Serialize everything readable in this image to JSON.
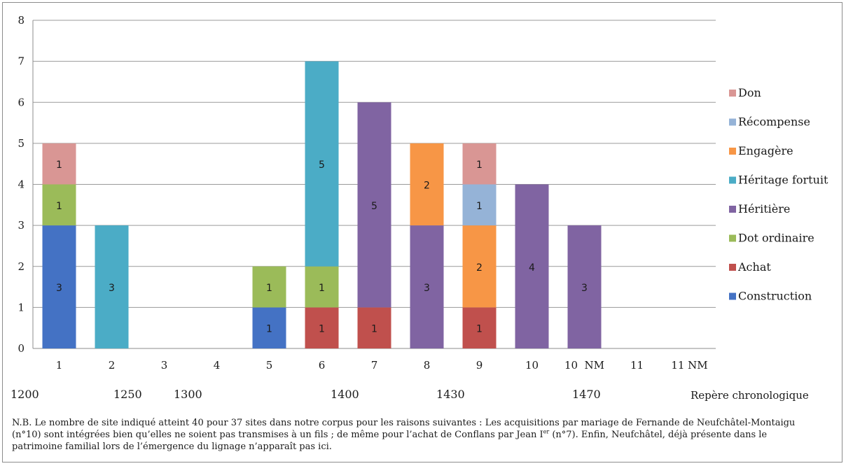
{
  "chart_data": {
    "type": "bar",
    "stacked": true,
    "categories": [
      "1",
      "2",
      "3",
      "4",
      "5",
      "6",
      "7",
      "8",
      "9",
      "10",
      "10  NM",
      "11",
      "11 NM"
    ],
    "ylim": [
      0,
      8
    ],
    "yticks": [
      "0",
      "1",
      "2",
      "3",
      "4",
      "5",
      "6",
      "7",
      "8"
    ],
    "grid": true,
    "legend_position": "right",
    "series": [
      {
        "name": "Construction",
        "color": "#4472c4",
        "values": [
          3,
          0,
          0,
          0,
          1,
          0,
          0,
          0,
          0,
          0,
          0,
          0,
          0
        ]
      },
      {
        "name": "Achat",
        "color": "#c0504d",
        "values": [
          0,
          0,
          0,
          0,
          0,
          1,
          1,
          0,
          1,
          0,
          0,
          0,
          0
        ]
      },
      {
        "name": "Dot ordinaire",
        "color": "#9bbb59",
        "values": [
          1,
          0,
          0,
          0,
          1,
          1,
          0,
          0,
          0,
          0,
          0,
          0,
          0
        ]
      },
      {
        "name": "Héritière",
        "color": "#8064a2",
        "values": [
          0,
          0,
          0,
          0,
          0,
          0,
          5,
          3,
          0,
          4,
          3,
          0,
          0
        ]
      },
      {
        "name": "Héritage fortuit",
        "color": "#4bacc6",
        "values": [
          0,
          3,
          0,
          0,
          0,
          5,
          0,
          0,
          0,
          0,
          0,
          0,
          0
        ]
      },
      {
        "name": "Engagère",
        "color": "#f79646",
        "values": [
          0,
          0,
          0,
          0,
          0,
          0,
          0,
          2,
          2,
          0,
          0,
          0,
          0
        ]
      },
      {
        "name": "Récompense",
        "color": "#95b3d7",
        "values": [
          0,
          0,
          0,
          0,
          0,
          0,
          0,
          0,
          1,
          0,
          0,
          0,
          0
        ]
      },
      {
        "name": "Don",
        "color": "#d99694",
        "values": [
          1,
          0,
          0,
          0,
          0,
          0,
          0,
          0,
          1,
          0,
          0,
          0,
          0
        ]
      }
    ],
    "legend_order": [
      "Don",
      "Récompense",
      "Engagère",
      "Héritage fortuit",
      "Héritière",
      "Dot ordinaire",
      "Achat",
      "Construction"
    ]
  },
  "chrono": {
    "years": [
      {
        "label": "1200",
        "category": "1"
      },
      {
        "label": "1250",
        "category": "2"
      },
      {
        "label": "1300",
        "category": "3"
      },
      {
        "label": "1400",
        "category": "6"
      },
      {
        "label": "1430",
        "category": "8"
      },
      {
        "label": "1470",
        "category": "10  NM"
      }
    ],
    "axis_label": "Repère chronologique"
  },
  "note": {
    "text": "N.B. Le nombre de site indiqué atteint 40 pour 37 sites dans notre corpus pour les raisons suivantes : Les acquisitions par mariage de Fernande de Neufchâtel-Montaigu (n°10) sont intégrées bien qu’elles ne soient pas transmises à un fils ; de même pour l’achat de Conflans par Jean I",
    "superscript": "er",
    "text_after": " (n°7). Enfin, Neufchâtel, déjà présente dans le patrimoine familial lors de l’émergence du lignage n’apparaît pas ici."
  }
}
